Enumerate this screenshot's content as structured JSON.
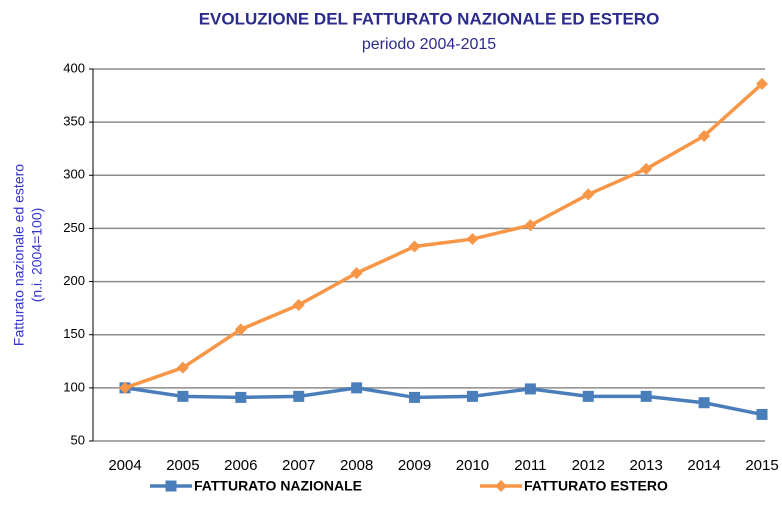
{
  "chart_data": {
    "type": "line",
    "title": "EVOLUZIONE DEL FATTURATO NAZIONALE ED ESTERO",
    "subtitle": "periodo 2004-2015",
    "y_label": [
      "Fatturato nazionale ed estero",
      "(n.i. 2004=100)"
    ],
    "categories": [
      "2004",
      "2005",
      "2006",
      "2007",
      "2008",
      "2009",
      "2010",
      "2011",
      "2012",
      "2013",
      "2014",
      "2015"
    ],
    "series": [
      {
        "name": "FATTURATO NAZIONALE",
        "color": "#4a7ebb",
        "marker": "square",
        "values": [
          100,
          92,
          91,
          92,
          100,
          91,
          92,
          99,
          92,
          92,
          86,
          75
        ]
      },
      {
        "name": "FATTURATO ESTERO",
        "color": "#f79646",
        "marker": "diamond",
        "values": [
          100,
          119,
          155,
          178,
          208,
          233,
          240,
          253,
          282,
          306,
          337,
          386
        ]
      }
    ],
    "ylim": [
      50,
      400
    ],
    "yticks": [
      50,
      100,
      150,
      200,
      250,
      300,
      350,
      400
    ],
    "grid": true,
    "legend": "bottom"
  }
}
